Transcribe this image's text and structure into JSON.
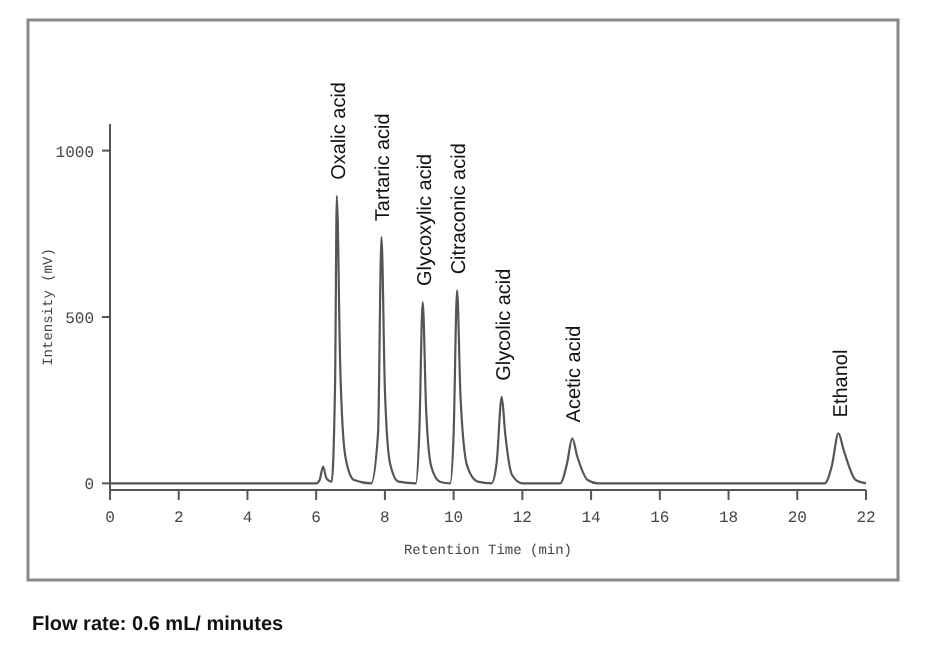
{
  "chart_data": {
    "type": "line",
    "xlabel": "Retention Time (min)",
    "ylabel": "Intensity (mV)",
    "xlim": [
      0,
      22
    ],
    "ylim": [
      -20,
      1080
    ],
    "xticks": [
      0,
      2,
      4,
      6,
      8,
      10,
      12,
      14,
      16,
      18,
      20,
      22
    ],
    "yticks": [
      0,
      500,
      1000
    ],
    "marker": "none",
    "line_style": "solid",
    "series": [
      {
        "color": "#555555",
        "x": [
          0,
          6.0,
          6.1,
          6.2,
          6.3,
          6.45,
          6.55,
          6.6,
          6.7,
          6.85,
          7.1,
          7.6,
          7.8,
          7.9,
          8.0,
          8.15,
          8.4,
          8.9,
          9.0,
          9.1,
          9.2,
          9.35,
          9.6,
          9.9,
          10.0,
          10.1,
          10.2,
          10.4,
          10.7,
          11.1,
          11.25,
          11.4,
          11.5,
          11.7,
          12.0,
          13.1,
          13.3,
          13.45,
          13.6,
          13.9,
          14.2,
          20.8,
          21.0,
          21.2,
          21.35,
          21.7,
          22.0
        ],
        "values": [
          0,
          0,
          10,
          50,
          15,
          5,
          300,
          864,
          350,
          80,
          10,
          0,
          150,
          740,
          280,
          60,
          5,
          0,
          150,
          545,
          220,
          50,
          5,
          0,
          150,
          580,
          260,
          50,
          5,
          0,
          60,
          260,
          150,
          25,
          0,
          0,
          60,
          135,
          80,
          10,
          0,
          0,
          50,
          150,
          100,
          10,
          0
        ]
      }
    ],
    "annotations": [
      {
        "text": "Oxalic acid",
        "x": 6.6,
        "y": 864
      },
      {
        "text": "Tartaric acid",
        "x": 7.9,
        "y": 740
      },
      {
        "text": "Glycoxylic acid",
        "x": 9.1,
        "y": 545
      },
      {
        "text": "Citraconic acid",
        "x": 10.1,
        "y": 580
      },
      {
        "text": "Glycolic acid",
        "x": 11.4,
        "y": 260
      },
      {
        "text": "Acetic acid",
        "x": 13.45,
        "y": 135
      },
      {
        "text": "Ethanol",
        "x": 21.2,
        "y": 150
      },
      "Flow rate: 0.6 mL/ minutes"
    ]
  }
}
